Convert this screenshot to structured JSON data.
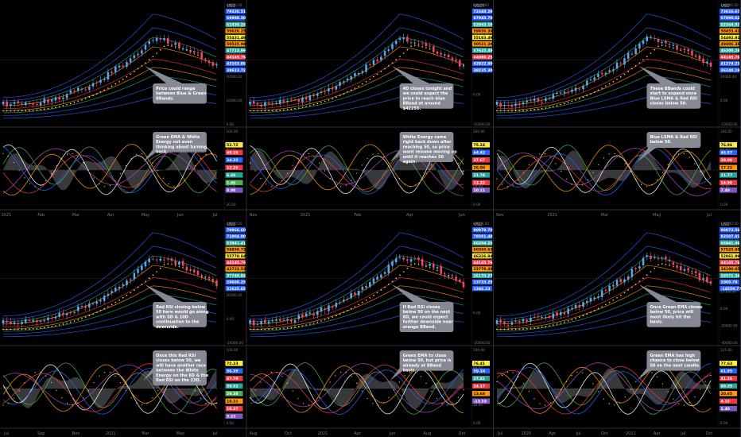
{
  "colors": {
    "background": "#000000",
    "panel_sep": "#2a2e39",
    "candle_up": "#5aa8f0",
    "candle_down": "#f0476e",
    "callout_bg": "#868993",
    "axis_text": "#b2b5be"
  },
  "panels": [
    {
      "id": "daily",
      "currency": "USD",
      "price_axis": {
        "ticks": [
          "80000.00",
          "60000.00",
          "40000.00",
          "20000.00",
          "10000.00",
          "0.00"
        ],
        "badges": [
          {
            "text": "79326.51",
            "color": "#2962ff"
          },
          {
            "text": "69988.30",
            "color": "#2962ff"
          },
          {
            "text": "62438.24",
            "color": "#26a69a"
          },
          {
            "text": "59626.25",
            "color": "#ff9800"
          },
          {
            "text": "55431.49",
            "color": "#ffeb3b"
          },
          {
            "text": "50525.98",
            "color": "#ff9800"
          },
          {
            "text": "47713.99",
            "color": "#26a69a"
          },
          {
            "text": "44145.76",
            "color": "#f23645"
          },
          {
            "text": "43163.86",
            "color": "#2962ff"
          },
          {
            "text": "38613.72",
            "color": "#2962ff"
          }
        ]
      },
      "osc_axis": {
        "ticks": [
          "100.00",
          "80.00",
          "60.00",
          "40.00",
          "20.00"
        ],
        "badges": [
          {
            "text": "52.72",
            "color": "#ffeb3b"
          },
          {
            "text": "40.16",
            "color": "#f23645"
          },
          {
            "text": "34.25",
            "color": "#2962ff"
          },
          {
            "text": "12.26",
            "color": "#f23645"
          },
          {
            "text": "6.46",
            "color": "#26a69a"
          },
          {
            "text": "1.46",
            "color": "#4caf50"
          },
          {
            "text": "0.00",
            "color": "#7e57c2"
          }
        ]
      },
      "time_labels": [
        "2021",
        "Feb",
        "Mar",
        "Apr",
        "May",
        "Jun",
        "Jul"
      ],
      "price_note": "Price could range between Blue & Green BBands.",
      "osc_note": "Green EMA & White Energy not even thinking about turning back."
    },
    {
      "id": "4d",
      "currency": "USDT",
      "price_axis": {
        "ticks": [
          "60000.00",
          "20000.00",
          "10000.00",
          "0.00",
          "-10000.00"
        ],
        "badges": [
          {
            "text": "72348.29",
            "color": "#2962ff"
          },
          {
            "text": "67945.70",
            "color": "#2962ff"
          },
          {
            "text": "62843.10",
            "color": "#26a69a"
          },
          {
            "text": "59936.39",
            "color": "#ff9800"
          },
          {
            "text": "55183.49",
            "color": "#ffeb3b"
          },
          {
            "text": "50521.28",
            "color": "#ff9800"
          },
          {
            "text": "47625.49",
            "color": "#26a69a"
          },
          {
            "text": "44080.25",
            "color": "#f23645"
          },
          {
            "text": "42922.90",
            "color": "#2962ff"
          },
          {
            "text": "38235.30",
            "color": "#2962ff"
          }
        ]
      },
      "osc_axis": {
        "ticks": [
          "100.00",
          "80.00",
          "60.00",
          "20.00",
          "0.00"
        ],
        "badges": [
          {
            "text": "75.24",
            "color": "#ffeb3b"
          },
          {
            "text": "44.42",
            "color": "#2962ff"
          },
          {
            "text": "37.67",
            "color": "#f23645"
          },
          {
            "text": "26.00",
            "color": "#ff9800"
          },
          {
            "text": "21.78",
            "color": "#26a69a"
          },
          {
            "text": "13.32",
            "color": "#f23645"
          },
          {
            "text": "10.11",
            "color": "#7e57c2"
          }
        ]
      },
      "time_labels": [
        "Nov",
        "2021",
        "Feb",
        "Apr",
        "Jun"
      ],
      "price_note": "4D closes tonight and we could expect the price to reach blue BBand at around $42255.",
      "osc_note": "White Energy came right back down after reaching 50, so price wont resume moving up until it reaches 50 again."
    },
    {
      "id": "weekly-a",
      "currency": "USD",
      "price_axis": {
        "ticks": [
          "100000.00",
          "60000.00",
          "40000.00",
          "20000.00",
          "0.00",
          "-10000.00"
        ],
        "badges": [
          {
            "text": "73616.67",
            "color": "#2962ff"
          },
          {
            "text": "67890.62",
            "color": "#2962ff"
          },
          {
            "text": "62364.57",
            "color": "#26a69a"
          },
          {
            "text": "58453.41",
            "color": "#ff9800"
          },
          {
            "text": "54492.91",
            "color": "#ffeb3b"
          },
          {
            "text": "49406.38",
            "color": "#ff9800"
          },
          {
            "text": "46300.28",
            "color": "#26a69a"
          },
          {
            "text": "44145.76",
            "color": "#f23645"
          },
          {
            "text": "41274.23",
            "color": "#2962ff"
          },
          {
            "text": "36248.19",
            "color": "#2962ff"
          }
        ]
      },
      "osc_axis": {
        "ticks": [
          "100.00",
          "80.00",
          "60.00",
          "20.00",
          "0.00"
        ],
        "badges": [
          {
            "text": "76.96",
            "color": "#ffeb3b"
          },
          {
            "text": "46.67",
            "color": "#2962ff"
          },
          {
            "text": "38.00",
            "color": "#f23645"
          },
          {
            "text": "17.22",
            "color": "#ff9800"
          },
          {
            "text": "11.77",
            "color": "#26a69a"
          },
          {
            "text": "14.90",
            "color": "#f23645"
          },
          {
            "text": "7.49",
            "color": "#7e57c2"
          }
        ]
      },
      "time_labels": [
        "Nov",
        "2021",
        "Mar",
        "May",
        "Jul"
      ],
      "price_note": "These BBands could start to expand once Blue LSMA & Red RSI closes below 50.",
      "osc_note": "Blue LSMA & Red RSI below 50."
    },
    {
      "id": "weekly-b",
      "currency": "USD",
      "price_axis": {
        "ticks": [
          "80000.00",
          "60000.00",
          "40000.00",
          "20000.00",
          "0.00",
          "-20000.00"
        ],
        "badges": [
          {
            "text": "79966.60",
            "color": "#2962ff"
          },
          {
            "text": "71904.00",
            "color": "#2962ff"
          },
          {
            "text": "63841.41",
            "color": "#26a69a"
          },
          {
            "text": "58858.72",
            "color": "#ff9800"
          },
          {
            "text": "55778.84",
            "color": "#ffeb3b"
          },
          {
            "text": "44145.76",
            "color": "#f23645"
          },
          {
            "text": "42723.53",
            "color": "#ff9800"
          },
          {
            "text": "37740.84",
            "color": "#26a69a"
          },
          {
            "text": "29688.25",
            "color": "#2962ff"
          },
          {
            "text": "21625.65",
            "color": "#2962ff"
          }
        ]
      },
      "osc_axis": {
        "ticks": [
          "100.00",
          "80.00",
          "60.00",
          "40.00",
          "20.00",
          "0.00"
        ],
        "badges": [
          {
            "text": "75.23",
            "color": "#ffeb3b"
          },
          {
            "text": "56.35",
            "color": "#2962ff"
          },
          {
            "text": "47.79",
            "color": "#f23645"
          },
          {
            "text": "39.52",
            "color": "#26a69a"
          },
          {
            "text": "29.38",
            "color": "#4caf50"
          },
          {
            "text": "18.21",
            "color": "#ff9800"
          },
          {
            "text": "10.37",
            "color": "#f23645"
          },
          {
            "text": "5.23",
            "color": "#7e57c2"
          }
        ]
      },
      "time_labels": [
        "Jul",
        "Sep",
        "Nov",
        "2021",
        "Mar",
        "May",
        "Jul"
      ],
      "price_note": "Red RSI closing below 50 here would go along with SD & 10D continuation to the downside.",
      "osc_note": "Once this Red RSI closes below 50, we will have another race between the White Energy on the 6D & the Red RSI on the 23D."
    },
    {
      "id": "2w",
      "currency": "USD",
      "price_axis": {
        "ticks": [
          "80000.00",
          "40000.00",
          "20000.00",
          "0.00",
          "-20000.00"
        ],
        "badges": [
          {
            "text": "90978.70",
            "color": "#2962ff"
          },
          {
            "text": "78591.48",
            "color": "#2962ff"
          },
          {
            "text": "66204.26",
            "color": "#26a69a"
          },
          {
            "text": "60360.63",
            "color": "#ff9800"
          },
          {
            "text": "46326.84",
            "color": "#ffeb3b"
          },
          {
            "text": "44145.76",
            "color": "#f23645"
          },
          {
            "text": "33779.49",
            "color": "#ff9800"
          },
          {
            "text": "26133.27",
            "color": "#26a69a"
          },
          {
            "text": "13733.25",
            "color": "#2962ff"
          },
          {
            "text": "1346.23",
            "color": "#2962ff"
          }
        ]
      },
      "osc_axis": {
        "ticks": [
          "100.00",
          "60.00",
          "40.00",
          "20.00",
          "0.00"
        ],
        "badges": [
          {
            "text": "76.41",
            "color": "#ffeb3b"
          },
          {
            "text": "59.10",
            "color": "#2962ff"
          },
          {
            "text": "37.81",
            "color": "#26a69a"
          },
          {
            "text": "24.17",
            "color": "#f23645"
          },
          {
            "text": "13.68",
            "color": "#ff9800"
          },
          {
            "text": "-13.53",
            "color": "#7e57c2"
          }
        ]
      },
      "time_labels": [
        "Aug",
        "Oct",
        "2021",
        "Apr",
        "Jun",
        "Aug",
        "Oct"
      ],
      "price_note": "If Red RSI closes below 50 on the next 8D, we could expect further downside near orange BBand.",
      "osc_note": "Green EMA to close below 50, but price is already at BBand basis."
    },
    {
      "id": "monthly",
      "currency": "USD",
      "price_axis": {
        "ticks": [
          "120000.00",
          "100000.00",
          "60000.00",
          "40000.00",
          "20000.00",
          "0.00",
          "-20000.00",
          "-40000.00"
        ],
        "badges": [
          {
            "text": "98072.56",
            "color": "#2962ff"
          },
          {
            "text": "82507.01",
            "color": "#2962ff"
          },
          {
            "text": "66941.46",
            "color": "#26a69a"
          },
          {
            "text": "57525.95",
            "color": "#ff9800"
          },
          {
            "text": "52061.99",
            "color": "#ffeb3b"
          },
          {
            "text": "44145.76",
            "color": "#f23645"
          },
          {
            "text": "34190.05",
            "color": "#ff9800"
          },
          {
            "text": "16571.34",
            "color": "#26a69a"
          },
          {
            "text": "1005.79",
            "color": "#2962ff"
          },
          {
            "text": "-14559.77",
            "color": "#2962ff"
          }
        ]
      },
      "osc_axis": {
        "ticks": [
          "125.00",
          "100.00",
          "75.00",
          "50.00",
          "25.00",
          "0.00"
        ],
        "badges": [
          {
            "text": "77.63",
            "color": "#ffeb3b"
          },
          {
            "text": "61.95",
            "color": "#2962ff"
          },
          {
            "text": "41.26",
            "color": "#f23645"
          },
          {
            "text": "40.35",
            "color": "#26a69a"
          },
          {
            "text": "20.65",
            "color": "#ff9800"
          },
          {
            "text": "4.18",
            "color": "#f23645"
          },
          {
            "text": "1.40",
            "color": "#7e57c2"
          }
        ]
      },
      "time_labels": [
        "Jul",
        "2020",
        "Apr",
        "Jul",
        "Oct",
        "2021",
        "Apr",
        "Jul",
        "Oct"
      ],
      "price_note": "Once Green EMA closes below 50, price will most likely hit the basis.",
      "osc_note": "Green EMA has high chance to close below 50 on the next candle."
    }
  ]
}
